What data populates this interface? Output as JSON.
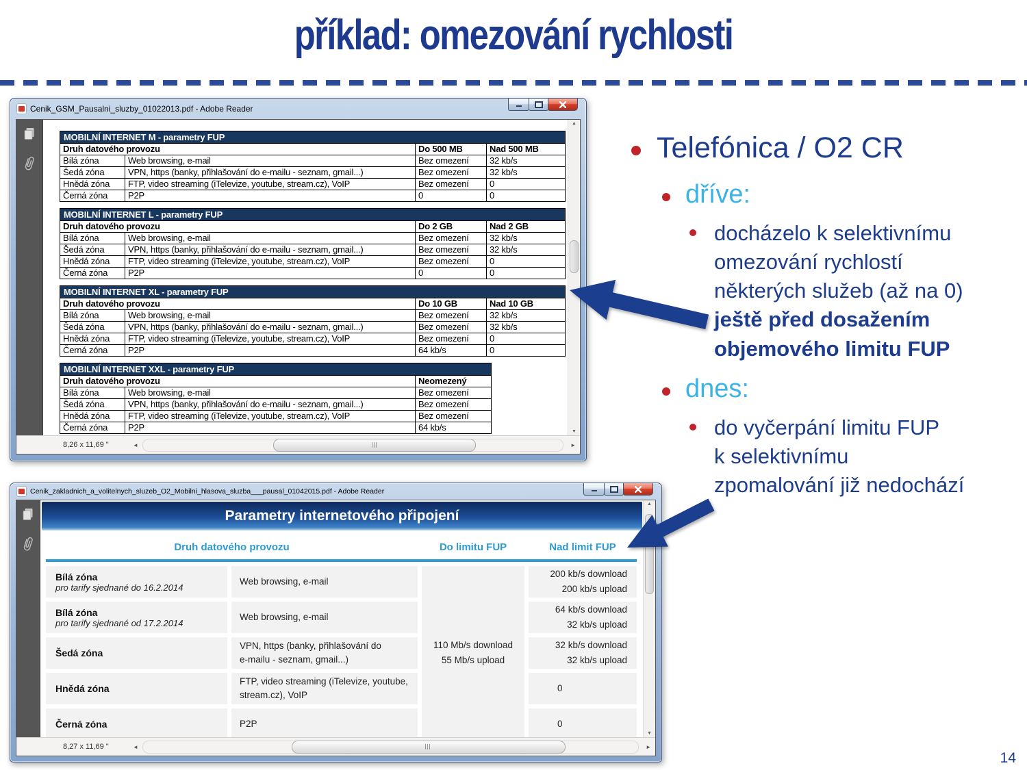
{
  "slide": {
    "title": "příklad: omezování rychlosti",
    "page_number": "14",
    "colors": {
      "title_blue": "#1d3a8f",
      "accent_cyan": "#3bb3e6",
      "bullet_red": "#c2232b",
      "table_header_navy": "#17375e",
      "arrow_blue": "#1c3e8e",
      "banner_cyan": "#2d9fd6"
    }
  },
  "icons": {
    "scroll_up": "▲",
    "scroll_down": "▼",
    "scroll_left": "◄",
    "scroll_right": "►"
  },
  "window1": {
    "title": "Cenik_GSM_Pausalni_sluzby_01022013.pdf - Adobe Reader",
    "status": "8,26 x 11,69 \"",
    "tables": [
      {
        "title": "MOBILNÍ INTERNET M - parametry FUP",
        "col_header": "Druh datového provozu",
        "limit_headers": [
          "Do 500 MB",
          "Nad 500 MB"
        ],
        "rows": [
          [
            "Bílá zóna",
            "Web browsing, e-mail",
            "Bez omezení",
            "32 kb/s"
          ],
          [
            "Šedá zóna",
            "VPN, https (banky, přihlašování do e-mailu - seznam, gmail...)",
            "Bez omezení",
            "32 kb/s"
          ],
          [
            "Hnědá zóna",
            "FTP, video streaming (iTelevize, youtube, stream.cz), VoIP",
            "Bez omezení",
            "0"
          ],
          [
            "Černá zóna",
            "P2P",
            "0",
            "0"
          ]
        ]
      },
      {
        "title": "MOBILNÍ INTERNET L - parametry FUP",
        "col_header": "Druh datového provozu",
        "limit_headers": [
          "Do 2 GB",
          "Nad 2 GB"
        ],
        "rows": [
          [
            "Bílá zóna",
            "Web browsing, e-mail",
            "Bez omezení",
            "32 kb/s"
          ],
          [
            "Šedá zóna",
            "VPN, https (banky, přihlašování do e-mailu - seznam, gmail...)",
            "Bez omezení",
            "32 kb/s"
          ],
          [
            "Hnědá zóna",
            "FTP, video streaming (iTelevize, youtube, stream.cz), VoIP",
            "Bez omezení",
            "0"
          ],
          [
            "Černá zóna",
            "P2P",
            "0",
            "0"
          ]
        ]
      },
      {
        "title": "MOBILNÍ INTERNET XL - parametry FUP",
        "col_header": "Druh datového provozu",
        "limit_headers": [
          "Do 10 GB",
          "Nad 10 GB"
        ],
        "rows": [
          [
            "Bílá zóna",
            "Web browsing, e-mail",
            "Bez omezení",
            "32 kb/s"
          ],
          [
            "Šedá zóna",
            "VPN, https (banky, přihlašování do e-mailu - seznam, gmail...)",
            "Bez omezení",
            "32 kb/s"
          ],
          [
            "Hnědá zóna",
            "FTP, video streaming (iTelevize, youtube, stream.cz), VoIP",
            "Bez omezení",
            "0"
          ],
          [
            "Černá zóna",
            "P2P",
            "64 kb/s",
            "0"
          ]
        ]
      },
      {
        "title": "MOBILNÍ INTERNET XXL - parametry FUP",
        "col_header": "Druh datového provozu",
        "limit_headers": [
          "Neomezený"
        ],
        "rows": [
          [
            "Bílá zóna",
            "Web browsing, e-mail",
            "Bez omezení"
          ],
          [
            "Šedá zóna",
            "VPN, https (banky, přihlašování do e-mailu - seznam, gmail...)",
            "Bez omezení"
          ],
          [
            "Hnědá zóna",
            "FTP, video streaming (iTelevize, youtube, stream.cz), VoIP",
            "Bez omezení"
          ],
          [
            "Černá zóna",
            "P2P",
            "64 kb/s"
          ]
        ]
      }
    ]
  },
  "window2": {
    "title": "Cenik_zakladnich_a_volitelnych_sluzeb_O2_Mobilni_hlasova_sluzba___pausal_01042015.pdf - Adobe Reader",
    "status": "8,27 x 11,69 \"",
    "banner": "Parametry internetového připojení",
    "headers": [
      "Druh datového provozu",
      "Do limitu FUP",
      "Nad limit FUP"
    ],
    "do_limit_value": "110 Mb/s download\n55 Mb/s upload",
    "rows": [
      {
        "zone": "Bílá zóna",
        "zone_note": "pro tarify sjednané do 16.2.2014",
        "service": "Web browsing, e-mail",
        "nad": "200 kb/s download\n200 kb/s upload"
      },
      {
        "zone": "Bílá zóna",
        "zone_note": "pro tarify sjednané od 17.2.2014",
        "service": "Web browsing, e-mail",
        "nad": "64 kb/s download\n32 kb/s upload"
      },
      {
        "zone": "Šedá zóna",
        "zone_note": "",
        "service": "VPN, https (banky, přihlašování do\ne-mailu - seznam, gmail...)",
        "nad": "32 kb/s download\n32 kb/s upload"
      },
      {
        "zone": "Hnědá zóna",
        "zone_note": "",
        "service": "FTP, video streaming (iTelevize, youtube,\nstream.cz), VoIP",
        "nad": "0"
      },
      {
        "zone": "Černá zóna",
        "zone_note": "",
        "service": "P2P",
        "nad": "0"
      }
    ]
  },
  "notes": {
    "b1": "Telefónica / O2 CR",
    "b2a": "dříve:",
    "b3a_regular": "docházelo k selektivnímu\nomezování rychlostí\nněkterých služeb (až na 0)",
    "b3a_bold": "ještě před dosažením\nobjemového limitu FUP",
    "b2b": "dnes:",
    "b3b": "do vyčerpání limitu FUP\nk selektivnímu\nzpomalování již nedochází"
  }
}
